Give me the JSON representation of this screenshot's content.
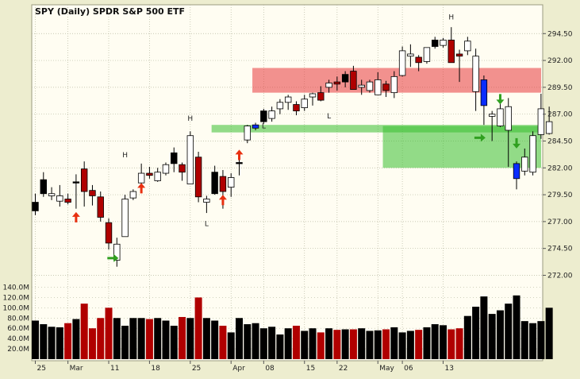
{
  "chart_data": {
    "type": "candlestick",
    "title": "SPY (Daily)  SPDR S&P 500 ETF",
    "price_axis": {
      "ticks": [
        "294.50",
        "292.00",
        "289.50",
        "287.00",
        "284.50",
        "282.00",
        "279.50",
        "277.00",
        "274.50",
        "272.00"
      ],
      "ylim": [
        271.0,
        296.0
      ],
      "side": "right"
    },
    "volume_axis": {
      "ticks": [
        "140.0M",
        "120.0M",
        "100.0M",
        "80.0M",
        "60.0M",
        "40.0M",
        "20.0M"
      ],
      "ylim": [
        0,
        150
      ],
      "unit": "M",
      "side": "left"
    },
    "x_labels": [
      {
        "index": 0,
        "label": "25"
      },
      {
        "index": 4,
        "label": "Mar"
      },
      {
        "index": 9,
        "label": "11"
      },
      {
        "index": 14,
        "label": "18"
      },
      {
        "index": 19,
        "label": "25"
      },
      {
        "index": 24,
        "label": "Apr"
      },
      {
        "index": 28,
        "label": "08"
      },
      {
        "index": 33,
        "label": "15"
      },
      {
        "index": 37,
        "label": "22"
      },
      {
        "index": 42,
        "label": "May"
      },
      {
        "index": 45,
        "label": "06"
      },
      {
        "index": 50,
        "label": "13"
      }
    ],
    "candles": [
      {
        "o": 278.8,
        "h": 279.6,
        "l": 277.6,
        "c": 278.0,
        "v": 75,
        "color": "black"
      },
      {
        "o": 280.9,
        "h": 281.6,
        "l": 279.3,
        "c": 279.6,
        "v": 68,
        "color": "black"
      },
      {
        "o": 279.6,
        "h": 280.2,
        "l": 279.0,
        "c": 279.4,
        "v": 63,
        "color": "white"
      },
      {
        "o": 279.4,
        "h": 280.4,
        "l": 278.4,
        "c": 278.9,
        "v": 62,
        "color": "white"
      },
      {
        "o": 279.1,
        "h": 279.6,
        "l": 278.6,
        "c": 278.8,
        "v": 70,
        "color": "red"
      },
      {
        "o": 280.7,
        "h": 281.4,
        "l": 278.2,
        "c": 280.7,
        "v": 78,
        "color": "black"
      },
      {
        "o": 281.9,
        "h": 282.6,
        "l": 278.4,
        "c": 279.8,
        "v": 108,
        "color": "red"
      },
      {
        "o": 279.9,
        "h": 280.4,
        "l": 278.5,
        "c": 279.4,
        "v": 60,
        "color": "red"
      },
      {
        "o": 279.3,
        "h": 279.8,
        "l": 277.0,
        "c": 277.4,
        "v": 80,
        "color": "red"
      },
      {
        "o": 276.9,
        "h": 277.3,
        "l": 274.4,
        "c": 275.0,
        "v": 100,
        "color": "red"
      },
      {
        "o": 273.4,
        "h": 275.5,
        "l": 272.8,
        "c": 274.9,
        "v": 80,
        "color": "white"
      },
      {
        "o": 275.6,
        "h": 279.5,
        "l": 275.6,
        "c": 279.1,
        "v": 65,
        "color": "white"
      },
      {
        "o": 279.2,
        "h": 280.0,
        "l": 279.0,
        "c": 279.8,
        "v": 80,
        "color": "white"
      },
      {
        "o": 280.6,
        "h": 282.4,
        "l": 280.4,
        "c": 281.5,
        "v": 80,
        "color": "white"
      },
      {
        "o": 281.5,
        "h": 282.1,
        "l": 281.0,
        "c": 281.3,
        "v": 78,
        "color": "red"
      },
      {
        "o": 280.8,
        "h": 282.0,
        "l": 280.7,
        "c": 281.6,
        "v": 80,
        "color": "white"
      },
      {
        "o": 281.5,
        "h": 282.5,
        "l": 281.3,
        "c": 282.3,
        "v": 75,
        "color": "white"
      },
      {
        "o": 283.4,
        "h": 283.9,
        "l": 281.6,
        "c": 282.4,
        "v": 65,
        "color": "black"
      },
      {
        "o": 282.3,
        "h": 282.5,
        "l": 280.8,
        "c": 281.6,
        "v": 82,
        "color": "red"
      },
      {
        "o": 280.5,
        "h": 285.4,
        "l": 280.5,
        "c": 285.0,
        "v": 80,
        "color": "white"
      },
      {
        "o": 283.0,
        "h": 283.5,
        "l": 278.8,
        "c": 279.3,
        "v": 120,
        "color": "red"
      },
      {
        "o": 278.8,
        "h": 279.4,
        "l": 277.8,
        "c": 279.1,
        "v": 80,
        "color": "white"
      },
      {
        "o": 281.6,
        "h": 282.2,
        "l": 279.5,
        "c": 279.6,
        "v": 75,
        "color": "black"
      },
      {
        "o": 281.2,
        "h": 281.8,
        "l": 278.2,
        "c": 279.8,
        "v": 65,
        "color": "red"
      },
      {
        "o": 280.2,
        "h": 281.5,
        "l": 279.3,
        "c": 281.1,
        "v": 52,
        "color": "white"
      },
      {
        "o": 282.5,
        "h": 283.1,
        "l": 281.3,
        "c": 282.5,
        "v": 80,
        "color": "black"
      },
      {
        "o": 284.6,
        "h": 286.0,
        "l": 284.3,
        "c": 285.9,
        "v": 68,
        "color": "white"
      },
      {
        "o": 285.7,
        "h": 286.2,
        "l": 285.5,
        "c": 286.0,
        "v": 70,
        "color": "blue"
      },
      {
        "o": 287.3,
        "h": 287.5,
        "l": 286.1,
        "c": 286.3,
        "v": 60,
        "color": "black"
      },
      {
        "o": 286.6,
        "h": 287.7,
        "l": 286.3,
        "c": 287.3,
        "v": 63,
        "color": "white"
      },
      {
        "o": 287.5,
        "h": 288.4,
        "l": 287.0,
        "c": 288.1,
        "v": 48,
        "color": "white"
      },
      {
        "o": 288.1,
        "h": 288.8,
        "l": 287.4,
        "c": 288.6,
        "v": 60,
        "color": "white"
      },
      {
        "o": 287.9,
        "h": 288.2,
        "l": 286.9,
        "c": 287.3,
        "v": 65,
        "color": "red"
      },
      {
        "o": 287.6,
        "h": 288.8,
        "l": 287.3,
        "c": 288.4,
        "v": 55,
        "color": "white"
      },
      {
        "o": 288.6,
        "h": 289.0,
        "l": 287.8,
        "c": 288.9,
        "v": 60,
        "color": "white"
      },
      {
        "o": 289.0,
        "h": 289.6,
        "l": 288.2,
        "c": 288.3,
        "v": 52,
        "color": "red"
      },
      {
        "o": 289.5,
        "h": 290.2,
        "l": 289.0,
        "c": 289.9,
        "v": 60,
        "color": "white"
      },
      {
        "o": 289.8,
        "h": 290.5,
        "l": 289.2,
        "c": 290.0,
        "v": 57,
        "color": "red"
      },
      {
        "o": 290.0,
        "h": 291.0,
        "l": 289.5,
        "c": 290.7,
        "v": 58,
        "color": "black"
      },
      {
        "o": 291.0,
        "h": 291.5,
        "l": 289.3,
        "c": 289.3,
        "v": 58,
        "color": "red"
      },
      {
        "o": 289.7,
        "h": 290.2,
        "l": 288.8,
        "c": 289.5,
        "v": 60,
        "color": "white"
      },
      {
        "o": 289.2,
        "h": 290.2,
        "l": 289.0,
        "c": 290.0,
        "v": 55,
        "color": "white"
      },
      {
        "o": 288.8,
        "h": 290.9,
        "l": 288.8,
        "c": 290.2,
        "v": 56,
        "color": "white"
      },
      {
        "o": 289.8,
        "h": 290.1,
        "l": 288.6,
        "c": 289.2,
        "v": 58,
        "color": "red"
      },
      {
        "o": 289.0,
        "h": 291.0,
        "l": 288.5,
        "c": 290.5,
        "v": 62,
        "color": "white"
      },
      {
        "o": 290.6,
        "h": 293.3,
        "l": 290.5,
        "c": 292.9,
        "v": 52,
        "color": "white"
      },
      {
        "o": 292.6,
        "h": 293.5,
        "l": 291.4,
        "c": 292.4,
        "v": 55,
        "color": "white"
      },
      {
        "o": 292.3,
        "h": 292.5,
        "l": 291.0,
        "c": 291.8,
        "v": 57,
        "color": "red"
      },
      {
        "o": 291.9,
        "h": 293.2,
        "l": 291.7,
        "c": 293.2,
        "v": 62,
        "color": "white"
      },
      {
        "o": 293.3,
        "h": 294.2,
        "l": 293.1,
        "c": 293.9,
        "v": 68,
        "color": "black"
      },
      {
        "o": 293.9,
        "h": 294.1,
        "l": 293.2,
        "c": 293.4,
        "v": 66,
        "color": "white"
      },
      {
        "o": 293.9,
        "h": 295.1,
        "l": 291.8,
        "c": 291.8,
        "v": 58,
        "color": "red"
      },
      {
        "o": 292.6,
        "h": 293.0,
        "l": 290.0,
        "c": 292.4,
        "v": 60,
        "color": "red"
      },
      {
        "o": 292.9,
        "h": 294.2,
        "l": 292.5,
        "c": 293.8,
        "v": 84,
        "color": "white"
      },
      {
        "o": 292.4,
        "h": 293.1,
        "l": 287.3,
        "c": 289.1,
        "v": 102,
        "color": "white"
      },
      {
        "o": 290.2,
        "h": 290.6,
        "l": 286.0,
        "c": 287.8,
        "v": 122,
        "color": "blue"
      },
      {
        "o": 286.8,
        "h": 287.3,
        "l": 284.5,
        "c": 287.0,
        "v": 88,
        "color": "white"
      },
      {
        "o": 285.9,
        "h": 288.5,
        "l": 285.8,
        "c": 287.5,
        "v": 95,
        "color": "white"
      },
      {
        "o": 285.5,
        "h": 288.5,
        "l": 282.1,
        "c": 287.7,
        "v": 108,
        "color": "white"
      },
      {
        "o": 282.4,
        "h": 282.6,
        "l": 280.0,
        "c": 281.0,
        "v": 124,
        "color": "blue"
      },
      {
        "o": 281.7,
        "h": 283.8,
        "l": 281.3,
        "c": 283.0,
        "v": 74,
        "color": "white"
      },
      {
        "o": 281.6,
        "h": 285.4,
        "l": 281.3,
        "c": 285.0,
        "v": 70,
        "color": "white"
      },
      {
        "o": 285.1,
        "h": 288.9,
        "l": 284.7,
        "c": 287.5,
        "v": 74,
        "color": "white"
      },
      {
        "o": 285.2,
        "h": 287.7,
        "l": 285.1,
        "c": 286.3,
        "v": 100,
        "color": "white"
      }
    ],
    "zones": [
      {
        "type": "resistance",
        "from_index": 27,
        "to_index": 63,
        "y_low": 289.0,
        "y_high": 291.3,
        "color": "#e8393c"
      },
      {
        "type": "support",
        "from_index": 22,
        "to_index": 63,
        "y_low": 285.3,
        "y_high": 286.0,
        "color": "#38c030"
      },
      {
        "type": "support",
        "from_index": 43,
        "to_index": 63,
        "y_low": 282.0,
        "y_high": 285.9,
        "color": "#38c030"
      }
    ],
    "markers": [
      {
        "index": 5,
        "symbol": "up-arrow",
        "y": 277.3,
        "color": "#e83010"
      },
      {
        "index": 10,
        "symbol": "right-arrow",
        "y": 273.6,
        "color": "#30a020"
      },
      {
        "index": 13,
        "symbol": "up-arrow",
        "y": 280.0,
        "color": "#e83010"
      },
      {
        "index": 23,
        "symbol": "up-arrow",
        "y": 278.9,
        "color": "#e83010"
      },
      {
        "index": 25,
        "symbol": "up-arrow",
        "y": 283.1,
        "color": "#e83010"
      },
      {
        "index": 55,
        "symbol": "right-arrow",
        "y": 284.8,
        "color": "#30a020"
      },
      {
        "index": 57,
        "symbol": "down-arrow",
        "y": 288.5,
        "color": "#30a020"
      },
      {
        "index": 59,
        "symbol": "down-arrow",
        "y": 284.4,
        "color": "#30a020"
      }
    ],
    "pivot_labels": [
      {
        "index": 11,
        "text": "H",
        "y": 283.0
      },
      {
        "index": 19,
        "text": "H",
        "y": 286.4
      },
      {
        "index": 21,
        "text": "L",
        "y": 276.6
      },
      {
        "index": 28,
        "text": "L",
        "y": 285.7
      },
      {
        "index": 36,
        "text": "L",
        "y": 286.6
      },
      {
        "index": 51,
        "text": "H",
        "y": 295.8
      }
    ],
    "grid": true
  }
}
